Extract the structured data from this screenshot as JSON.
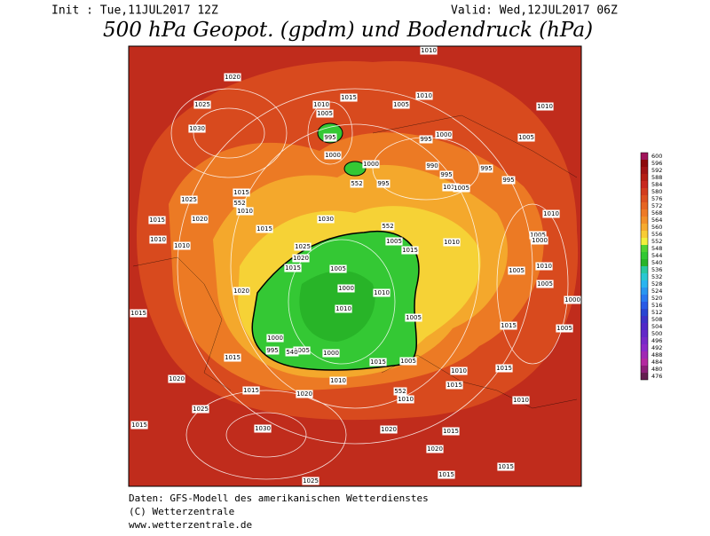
{
  "header": {
    "init": "Init : Tue,11JUL2017 12Z",
    "valid": "Valid: Wed,12JUL2017 06Z",
    "title": "500 hPa Geopot. (gpdm) und Bodendruck (hPa)"
  },
  "legend": {
    "levels": [
      "600",
      "596",
      "592",
      "588",
      "584",
      "580",
      "576",
      "572",
      "568",
      "564",
      "560",
      "556",
      "552",
      "548",
      "544",
      "540",
      "536",
      "532",
      "528",
      "524",
      "520",
      "516",
      "512",
      "508",
      "504",
      "500",
      "496",
      "492",
      "488",
      "484",
      "480",
      "476"
    ],
    "colors": [
      "#a0145a",
      "#8c0a0a",
      "#a01414",
      "#b41e14",
      "#c8281e",
      "#d23c1e",
      "#dc5020",
      "#e66422",
      "#ee7a26",
      "#f29028",
      "#f6aa2e",
      "#f8cc34",
      "#f0f03c",
      "#50d232",
      "#32c832",
      "#28b428",
      "#28c8a0",
      "#28c8d2",
      "#28b4f0",
      "#2896f0",
      "#2878f0",
      "#285ae6",
      "#2846d2",
      "#3c32c8",
      "#5028c8",
      "#6428c8",
      "#7828c8",
      "#8c28c8",
      "#a028b4",
      "#b428a0",
      "#8c1e78",
      "#641e50"
    ]
  },
  "isobar_labels": [
    "1010",
    "1020",
    "1025",
    "1030",
    "1015",
    "1010",
    "1005",
    "995",
    "1000",
    "1010",
    "1005",
    "995",
    "1000",
    "1005",
    "1010",
    "1000",
    "995",
    "990",
    "995",
    "995",
    "995",
    "1015",
    "1025",
    "1010",
    "1020",
    "1015",
    "1015",
    "1010",
    "1010",
    "1030",
    "1010",
    "1005",
    "1010",
    "1005",
    "1000",
    "1010",
    "1005",
    "1025",
    "1020",
    "1015",
    "1005",
    "1000",
    "1010",
    "1015",
    "1005",
    "1010",
    "1005",
    "1000",
    "1020",
    "1015",
    "1010",
    "1005",
    "1000",
    "995",
    "1005",
    "1000",
    "1015",
    "1010",
    "1015",
    "1005",
    "1010",
    "1015",
    "1005",
    "1015",
    "1015",
    "1020",
    "1015",
    "1020",
    "1010",
    "1010",
    "1025",
    "1030",
    "1015",
    "1020",
    "1015",
    "1020",
    "1015",
    "1015",
    "1025",
    "552",
    "552",
    "552",
    "540",
    "552"
  ],
  "footer": [
    "Daten: GFS-Modell des amerikanischen Wetterdienstes",
    "(C) Wetterzentrale",
    "www.wetterzentrale.de"
  ]
}
